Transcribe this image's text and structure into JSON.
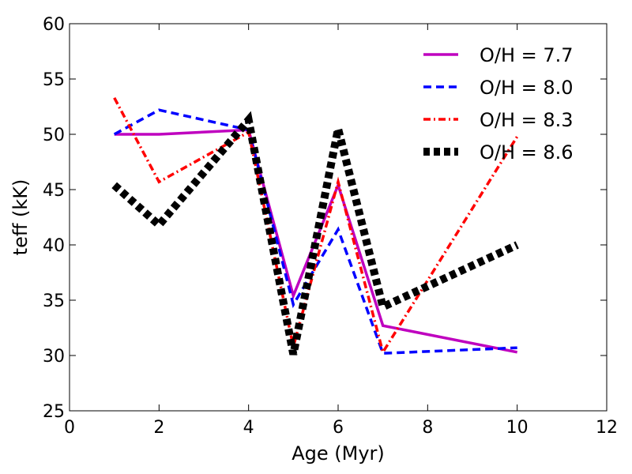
{
  "chart_data": {
    "type": "line",
    "title": "",
    "xlabel": "Age (Myr)",
    "ylabel": "teff (kK)",
    "xlim": [
      0,
      12
    ],
    "ylim": [
      25,
      60
    ],
    "xticks": [
      0,
      2,
      4,
      6,
      8,
      10,
      12
    ],
    "yticks": [
      25,
      30,
      35,
      40,
      45,
      50,
      55,
      60
    ],
    "grid": false,
    "legend_position": "top-right",
    "x": [
      1,
      2,
      4,
      5,
      6,
      7,
      10
    ],
    "series": [
      {
        "name": "O/H = 7.7",
        "color": "#bf00bf",
        "style": "solid",
        "values": [
          50.0,
          50.0,
          50.4,
          35.4,
          45.4,
          32.7,
          30.3
        ]
      },
      {
        "name": "O/H = 8.0",
        "color": "#0000ff",
        "style": "dashed",
        "values": [
          50.0,
          52.2,
          50.4,
          34.6,
          41.4,
          30.2,
          30.7
        ]
      },
      {
        "name": "O/H = 8.3",
        "color": "#ff0000",
        "style": "dashdot",
        "values": [
          53.3,
          45.7,
          50.2,
          30.8,
          45.7,
          30.3,
          49.8
        ]
      },
      {
        "name": "O/H = 8.6",
        "color": "#000000",
        "style": "thickdotted",
        "values": [
          45.4,
          41.8,
          51.3,
          30.1,
          50.5,
          34.4,
          40.0
        ]
      }
    ]
  }
}
